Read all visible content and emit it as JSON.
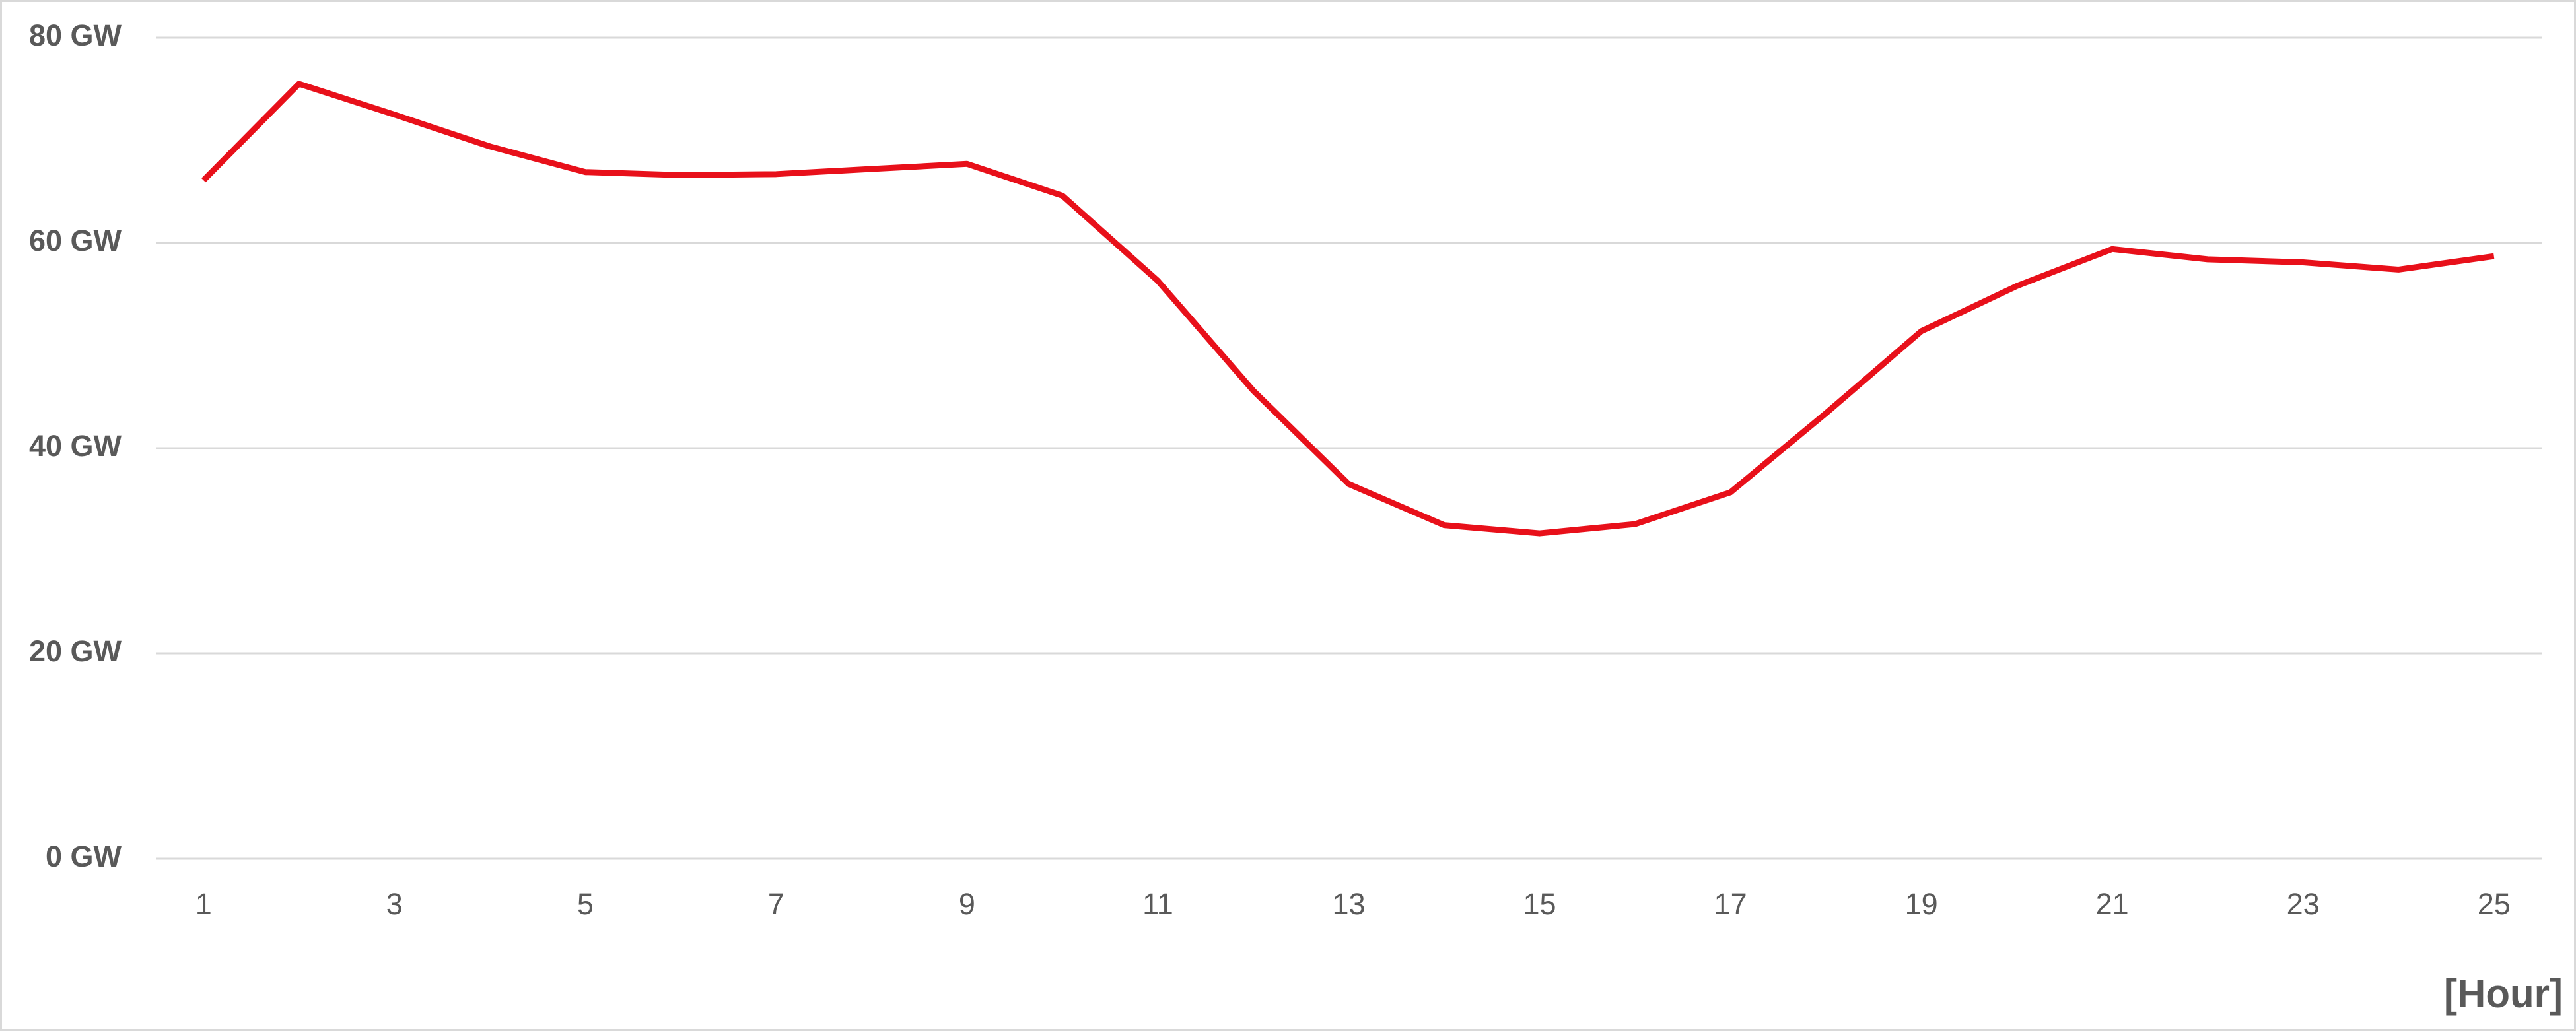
{
  "chart_data": {
    "type": "line",
    "x_label": "[Hour]",
    "categories": [
      1,
      null,
      3,
      null,
      5,
      null,
      7,
      null,
      9,
      null,
      11,
      null,
      13,
      null,
      15,
      null,
      17,
      null,
      19,
      null,
      21,
      null,
      23,
      null,
      25
    ],
    "values": [
      66.1,
      75.5,
      72.5,
      69.4,
      66.9,
      66.6,
      66.7,
      67.2,
      67.7,
      64.6,
      56.3,
      45.6,
      36.5,
      32.5,
      31.7,
      32.6,
      35.7,
      43.4,
      51.4,
      55.8,
      59.4,
      58.4,
      58.1,
      57.4,
      58.7
    ],
    "color": "#e8101a",
    "ylim": [
      0,
      80
    ],
    "yticks": [
      {
        "value": 0,
        "label": "0 GW"
      },
      {
        "value": 20,
        "label": "20 GW"
      },
      {
        "value": 40,
        "label": "40 GW"
      },
      {
        "value": 60,
        "label": "60 GW"
      },
      {
        "value": 80,
        "label": "80 GW"
      }
    ],
    "grid": true
  }
}
